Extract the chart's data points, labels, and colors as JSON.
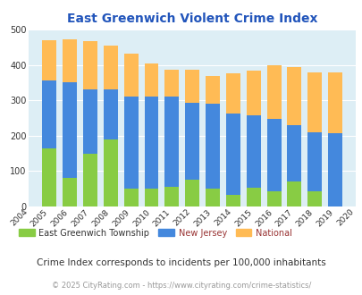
{
  "title": "East Greenwich Violent Crime Index",
  "years": [
    2004,
    2005,
    2006,
    2007,
    2008,
    2009,
    2010,
    2011,
    2012,
    2013,
    2014,
    2015,
    2016,
    2017,
    2018,
    2019,
    2020
  ],
  "east_greenwich": [
    null,
    165,
    80,
    150,
    190,
    50,
    50,
    55,
    75,
    50,
    33,
    52,
    42,
    70,
    42,
    0,
    null
  ],
  "new_jersey": [
    null,
    355,
    350,
    330,
    330,
    311,
    310,
    310,
    293,
    290,
    262,
    257,
    248,
    231,
    210,
    207,
    null
  ],
  "national": [
    null,
    469,
    473,
    467,
    455,
    432,
    405,
    387,
    387,
    368,
    377,
    383,
    398,
    394,
    379,
    379,
    null
  ],
  "bar_width": 0.7,
  "ylim": [
    0,
    500
  ],
  "yticks": [
    0,
    100,
    200,
    300,
    400,
    500
  ],
  "color_green": "#88cc44",
  "color_blue": "#4488dd",
  "color_orange": "#ffbb55",
  "bg_color": "#ddeef5",
  "title_color": "#2255bb",
  "legend_label_green": "East Greenwich Township",
  "legend_label_blue": "New Jersey",
  "legend_label_orange": "National",
  "legend_text_color": "#333333",
  "legend_nj_color": "#993333",
  "footnote1": "Crime Index corresponds to incidents per 100,000 inhabitants",
  "footnote2": "© 2025 CityRating.com - https://www.cityrating.com/crime-statistics/",
  "footnote1_color": "#333333",
  "footnote2_color": "#999999"
}
